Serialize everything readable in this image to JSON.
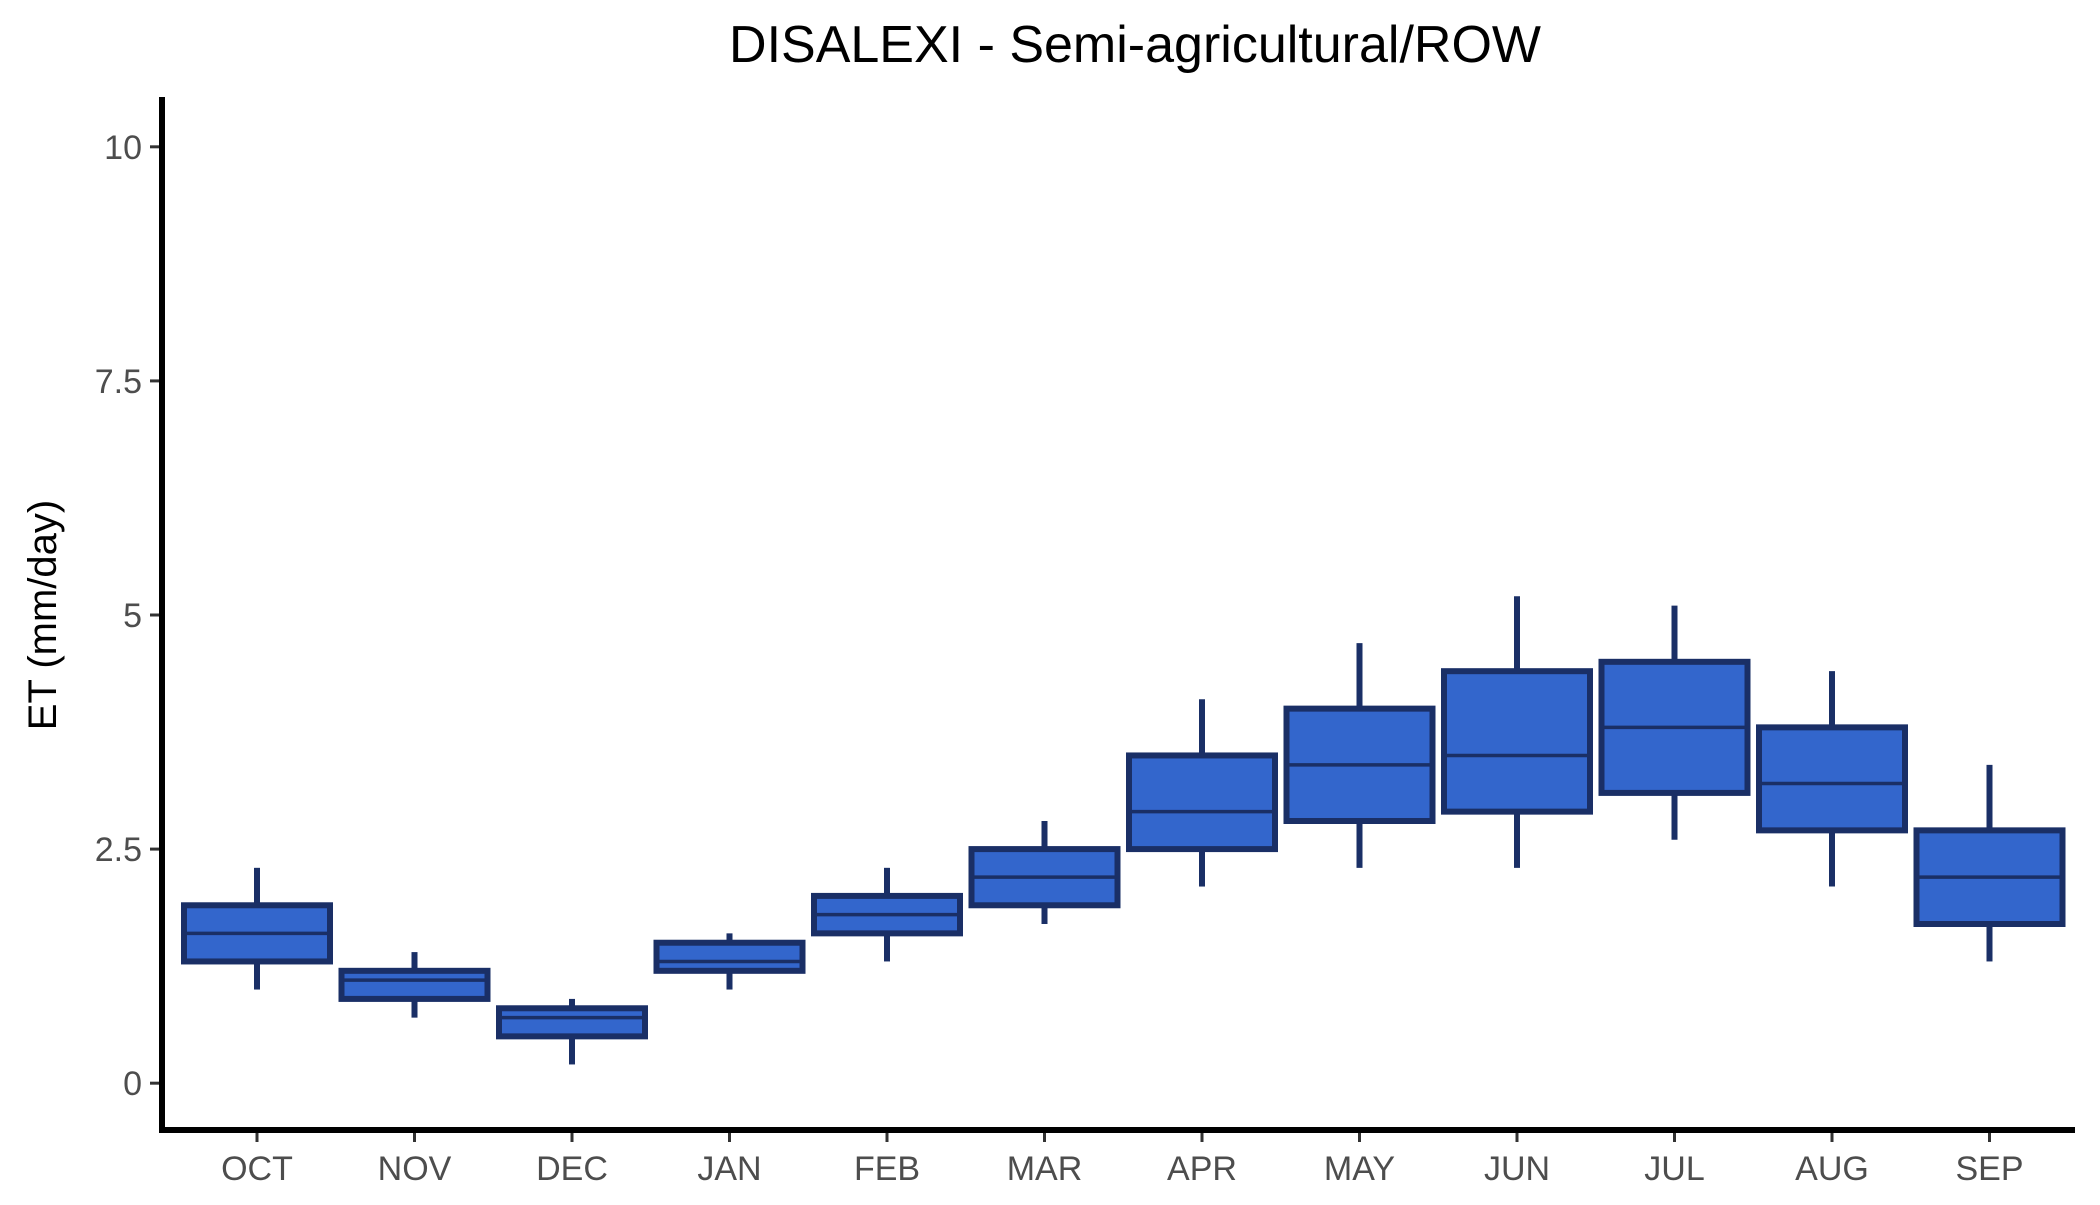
{
  "chart_data": {
    "type": "box",
    "title": "DISALEXI - Semi-agricultural/ROW",
    "xlabel": "",
    "ylabel": "ET (mm/day)",
    "ylim": [
      -0.5,
      10.5
    ],
    "yticks": [
      0,
      2.5,
      5,
      7.5,
      10
    ],
    "ytick_labels": [
      "0",
      "2.5",
      "5",
      "7.5",
      "10"
    ],
    "categories": [
      "OCT",
      "NOV",
      "DEC",
      "JAN",
      "FEB",
      "MAR",
      "APR",
      "MAY",
      "JUN",
      "JUL",
      "AUG",
      "SEP"
    ],
    "boxes": [
      {
        "min": 1.0,
        "q1": 1.3,
        "median": 1.6,
        "q3": 1.9,
        "max": 2.3
      },
      {
        "min": 0.7,
        "q1": 0.9,
        "median": 1.1,
        "q3": 1.2,
        "max": 1.4
      },
      {
        "min": 0.2,
        "q1": 0.5,
        "median": 0.7,
        "q3": 0.8,
        "max": 0.9
      },
      {
        "min": 1.0,
        "q1": 1.2,
        "median": 1.3,
        "q3": 1.5,
        "max": 1.6
      },
      {
        "min": 1.3,
        "q1": 1.6,
        "median": 1.8,
        "q3": 2.0,
        "max": 2.3
      },
      {
        "min": 1.7,
        "q1": 1.9,
        "median": 2.2,
        "q3": 2.5,
        "max": 2.8
      },
      {
        "min": 2.1,
        "q1": 2.5,
        "median": 2.9,
        "q3": 3.5,
        "max": 4.1
      },
      {
        "min": 2.3,
        "q1": 2.8,
        "median": 3.4,
        "q3": 4.0,
        "max": 4.7
      },
      {
        "min": 2.3,
        "q1": 2.9,
        "median": 3.5,
        "q3": 4.4,
        "max": 5.2
      },
      {
        "min": 2.6,
        "q1": 3.1,
        "median": 3.8,
        "q3": 4.5,
        "max": 5.1
      },
      {
        "min": 2.1,
        "q1": 2.7,
        "median": 3.2,
        "q3": 3.8,
        "max": 4.4
      },
      {
        "min": 1.3,
        "q1": 1.7,
        "median": 2.2,
        "q3": 2.7,
        "max": 3.4
      }
    ],
    "colors": {
      "box_fill": "#3366cc",
      "box_outline": "#1a2f66",
      "axis": "#000000",
      "tick_label": "#4d4d4d"
    },
    "grid": false,
    "legend": "none"
  }
}
